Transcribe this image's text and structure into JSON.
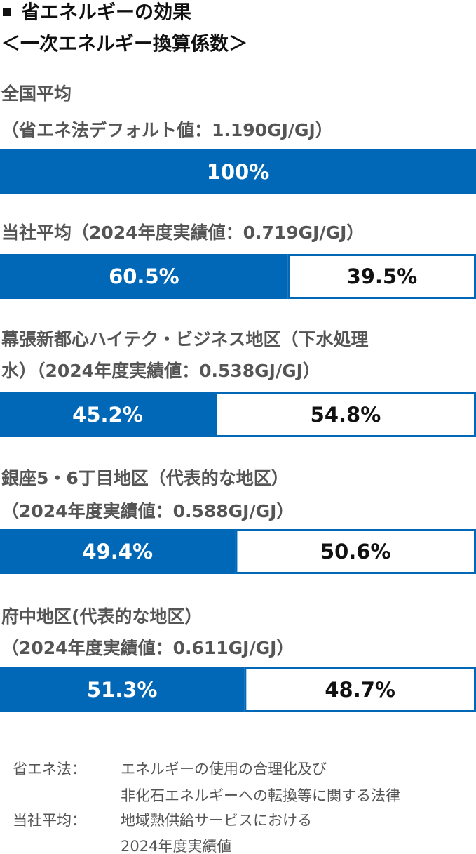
{
  "chart_data": {
    "type": "stacked-bar-horizontal",
    "title": "省エネルギーの効果",
    "subtitle": "＜一次エネルギー換算係数＞",
    "categories": [
      [
        "全国平均",
        "（省エネ法デフォルト値：1.190GJ/GJ）"
      ],
      [
        "当社平均（2024年度実績値：0.719GJ/GJ）"
      ],
      [
        "幕張新都心ハイテク・ビジネス地区（下水処理",
        "水）（2024年度実績値：0.538GJ/GJ）"
      ],
      [
        "銀座5・6丁目地区（代表的な地区）",
        "（2024年度実績値：0.588GJ/GJ）"
      ],
      [
        "府中地区(代表的な地区）",
        "（2024年度実績値：0.611GJ/GJ）"
      ]
    ],
    "series": [
      {
        "color": "#0068b7",
        "values": [
          100,
          60.5,
          45.2,
          49.4,
          51.3
        ],
        "value_labels": [
          "100%",
          "60.5%",
          "45.2%",
          "49.4%",
          "51.3%"
        ]
      },
      {
        "color": "#ffffff",
        "values": [
          null,
          39.5,
          54.8,
          50.6,
          48.7
        ],
        "value_labels": [
          null,
          "39.5%",
          "54.8%",
          "50.6%",
          "48.7%"
        ]
      }
    ],
    "xlim": [
      0,
      100
    ],
    "notes": [
      {
        "term": "省エネ法：",
        "lines": [
          "エネルギーの使用の合理化及び",
          "非化石エネルギーへの転換等に関する法律"
        ]
      },
      {
        "term": "当社平均：",
        "lines": [
          "地域熱供給サービスにおける",
          "2024年度実績値"
        ]
      }
    ]
  }
}
